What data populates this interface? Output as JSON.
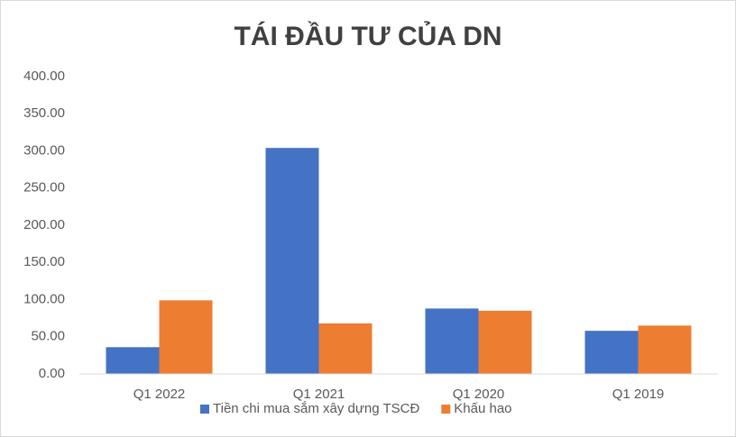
{
  "chart_data": {
    "type": "bar",
    "title": "TÁI ĐẦU TƯ CỦA DN",
    "categories": [
      "Q1 2022",
      "Q1 2021",
      "Q1 2020",
      "Q1 2019"
    ],
    "series": [
      {
        "name": "Tiền chi mua sắm xây dựng TSCĐ",
        "color": "#4472c4",
        "values": [
          36,
          304,
          88,
          58
        ]
      },
      {
        "name": "Khấu hao",
        "color": "#ed7d31",
        "values": [
          99,
          68,
          85,
          65
        ]
      }
    ],
    "ylim": [
      0,
      400
    ],
    "yticks": [
      {
        "value": 0,
        "label": "0.00"
      },
      {
        "value": 50,
        "label": "50.00"
      },
      {
        "value": 100,
        "label": "100.00"
      },
      {
        "value": 150,
        "label": "150.00"
      },
      {
        "value": 200,
        "label": "200.00"
      },
      {
        "value": 250,
        "label": "250.00"
      },
      {
        "value": 300,
        "label": "300.00"
      },
      {
        "value": 350,
        "label": "350.00"
      },
      {
        "value": 400,
        "label": "400.00"
      }
    ],
    "grid": false,
    "legend": "bottom"
  }
}
